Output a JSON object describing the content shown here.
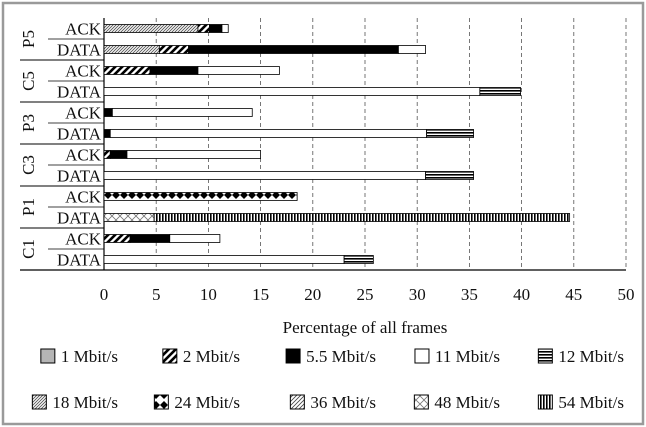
{
  "chart_data": {
    "type": "bar",
    "orientation": "horizontal",
    "stacked": true,
    "xlabel": "Percentage of all frames",
    "xlim": [
      0,
      50
    ],
    "x_ticks": [
      "0",
      "5",
      "10",
      "15",
      "20",
      "25",
      "30",
      "35",
      "40",
      "45",
      "50"
    ],
    "grid": "vertical dashed",
    "legend_position": "bottom",
    "legend": [
      {
        "label": "1 Mbit/s",
        "pattern": "gray"
      },
      {
        "label": "2 Mbit/s",
        "pattern": "diag"
      },
      {
        "label": "5.5 Mbit/s",
        "pattern": "black"
      },
      {
        "label": "11 Mbit/s",
        "pattern": "white"
      },
      {
        "label": "12 Mbit/s",
        "pattern": "hstripe"
      },
      {
        "label": "18 Mbit/s",
        "pattern": "diag-dense"
      },
      {
        "label": "24 Mbit/s",
        "pattern": "diamond"
      },
      {
        "label": "36 Mbit/s",
        "pattern": "diag-light"
      },
      {
        "label": "48 Mbit/s",
        "pattern": "cross"
      },
      {
        "label": "54 Mbit/s",
        "pattern": "vstripe"
      }
    ],
    "groups": [
      {
        "name": "P5",
        "bars": [
          {
            "label": "ACK",
            "segments": [
              {
                "rate": "18 Mbit/s",
                "value": 9
              },
              {
                "rate": "2 Mbit/s",
                "value": 1.1
              },
              {
                "rate": "5.5 Mbit/s",
                "value": 1.2
              },
              {
                "rate": "11 Mbit/s",
                "value": 0.6
              }
            ]
          },
          {
            "label": "DATA",
            "segments": [
              {
                "rate": "18 Mbit/s",
                "value": 5.3
              },
              {
                "rate": "2 Mbit/s",
                "value": 2.8
              },
              {
                "rate": "5.5 Mbit/s",
                "value": 20.1
              },
              {
                "rate": "11 Mbit/s",
                "value": 2.6
              }
            ]
          }
        ]
      },
      {
        "name": "C5",
        "bars": [
          {
            "label": "ACK",
            "segments": [
              {
                "rate": "2 Mbit/s",
                "value": 4.4
              },
              {
                "rate": "5.5 Mbit/s",
                "value": 4.6
              },
              {
                "rate": "11 Mbit/s",
                "value": 7.8
              }
            ]
          },
          {
            "label": "DATA",
            "segments": [
              {
                "rate": "11 Mbit/s",
                "value": 36
              },
              {
                "rate": "12 Mbit/s",
                "value": 3.9
              }
            ]
          }
        ]
      },
      {
        "name": "P3",
        "bars": [
          {
            "label": "ACK",
            "segments": [
              {
                "rate": "5.5 Mbit/s",
                "value": 0.8
              },
              {
                "rate": "11 Mbit/s",
                "value": 13.4
              }
            ]
          },
          {
            "label": "DATA",
            "segments": [
              {
                "rate": "5.5 Mbit/s",
                "value": 0.6
              },
              {
                "rate": "11 Mbit/s",
                "value": 30.3
              },
              {
                "rate": "12 Mbit/s",
                "value": 4.5
              }
            ]
          }
        ]
      },
      {
        "name": "C3",
        "bars": [
          {
            "label": "ACK",
            "segments": [
              {
                "rate": "2 Mbit/s",
                "value": 0.6
              },
              {
                "rate": "5.5 Mbit/s",
                "value": 1.6
              },
              {
                "rate": "11 Mbit/s",
                "value": 12.8
              }
            ]
          },
          {
            "label": "DATA",
            "segments": [
              {
                "rate": "11 Mbit/s",
                "value": 30.8
              },
              {
                "rate": "12 Mbit/s",
                "value": 4.6
              }
            ]
          }
        ]
      },
      {
        "name": "P1",
        "bars": [
          {
            "label": "ACK",
            "segments": [
              {
                "rate": "24 Mbit/s",
                "value": 18.5
              }
            ]
          },
          {
            "label": "DATA",
            "segments": [
              {
                "rate": "48 Mbit/s",
                "value": 4.8
              },
              {
                "rate": "54 Mbit/s",
                "value": 39.8
              }
            ]
          }
        ]
      },
      {
        "name": "C1",
        "bars": [
          {
            "label": "ACK",
            "segments": [
              {
                "rate": "2 Mbit/s",
                "value": 2.5
              },
              {
                "rate": "5.5 Mbit/s",
                "value": 3.8
              },
              {
                "rate": "11 Mbit/s",
                "value": 4.8
              }
            ]
          },
          {
            "label": "DATA",
            "segments": [
              {
                "rate": "11 Mbit/s",
                "value": 23
              },
              {
                "rate": "12 Mbit/s",
                "value": 2.8
              }
            ]
          }
        ]
      }
    ]
  }
}
